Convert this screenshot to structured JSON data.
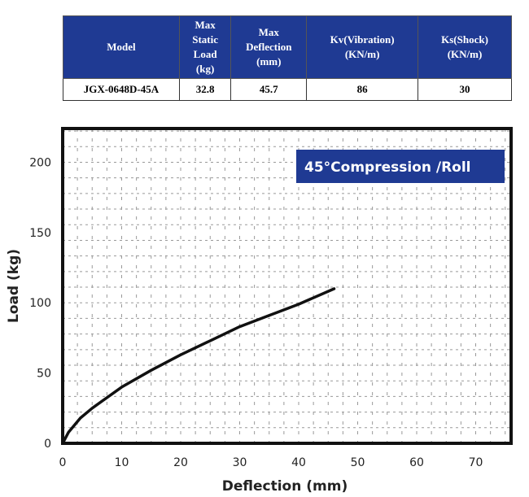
{
  "table": {
    "headers": [
      "Model",
      "Max Static Load (kg)",
      "Max Deflection (mm)",
      "Kv(Vibration) (KN/m)",
      "Ks(Shock) (KN/m)"
    ],
    "header_lines": [
      [
        "Model"
      ],
      [
        "Max",
        "Static",
        "Load",
        "(kg)"
      ],
      [
        "Max",
        "Deflection",
        "(mm)"
      ],
      [
        "Kv(Vibration)",
        "(KN/m)"
      ],
      [
        "Ks(Shock)",
        "(KN/m)"
      ]
    ],
    "row": [
      "JGX-0648D-45A",
      "32.8",
      "45.7",
      "86",
      "30"
    ]
  },
  "chart_data": {
    "type": "line",
    "title": "45°Compression /Roll",
    "xlabel": "Deflection (mm)",
    "ylabel": "Load (kg)",
    "xlim": [
      0,
      76
    ],
    "ylim": [
      0,
      224
    ],
    "xticks": [
      0,
      10,
      20,
      30,
      40,
      50,
      60,
      70
    ],
    "yticks": [
      0,
      50,
      100,
      150,
      200
    ],
    "grid": true,
    "title_color": "#1f3a93",
    "series": [
      {
        "name": "45° Compression /Roll",
        "x": [
          0,
          1,
          3,
          5,
          10,
          15,
          20,
          25,
          30,
          35,
          40,
          46
        ],
        "y": [
          0,
          8,
          18,
          25,
          40,
          52,
          63,
          73,
          83,
          91,
          99,
          110
        ]
      }
    ]
  }
}
